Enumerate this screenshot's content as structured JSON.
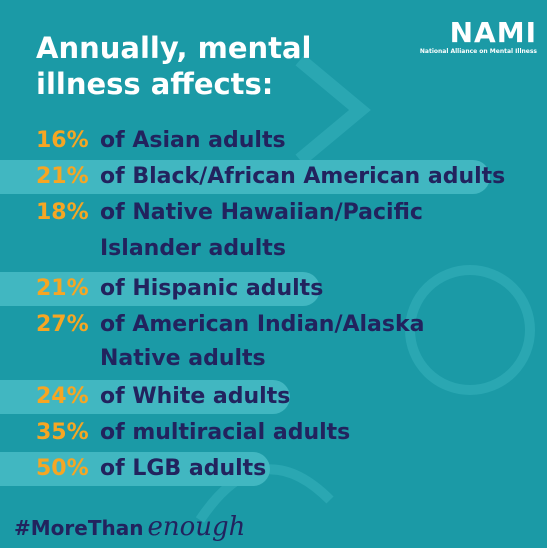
{
  "header": {
    "title_lines": [
      "Annually, mental",
      "illness affects:"
    ]
  },
  "logo": {
    "name": "NAMI",
    "tagline": "National Alliance on Mental Illness"
  },
  "items": [
    {
      "percent": "16%",
      "lines": [
        "of Asian adults"
      ]
    },
    {
      "percent": "21%",
      "lines": [
        "of Black/African American adults"
      ]
    },
    {
      "percent": "18%",
      "lines": [
        "of Native Hawaiian/Pacific",
        "Islander adults"
      ]
    },
    {
      "percent": "21%",
      "lines": [
        "of Hispanic adults"
      ]
    },
    {
      "percent": "27%",
      "lines": [
        "of American Indian/Alaska",
        "Native adults"
      ]
    },
    {
      "percent": "24%",
      "lines": [
        "of White adults"
      ]
    },
    {
      "percent": "35%",
      "lines": [
        "of multiracial adults"
      ]
    },
    {
      "percent": "50%",
      "lines": [
        "of LGB adults"
      ]
    }
  ],
  "footer": {
    "hashtag": "#MoreThan",
    "script": "enough"
  }
}
